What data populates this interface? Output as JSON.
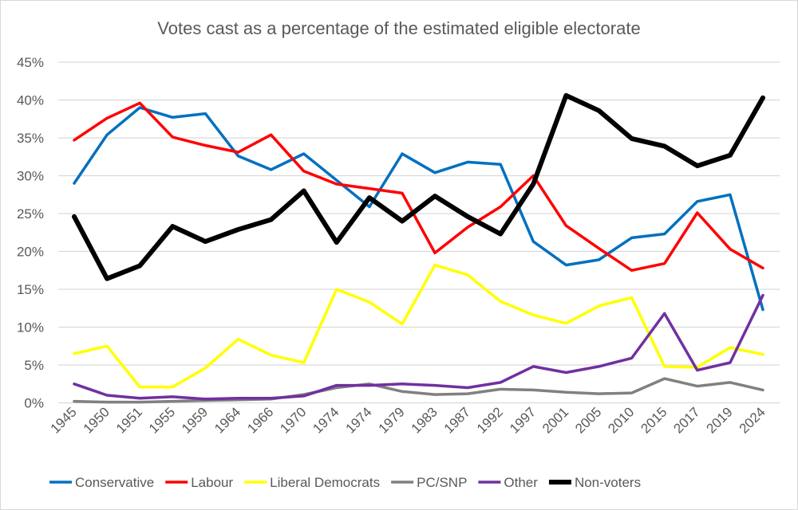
{
  "chart_data": {
    "type": "line",
    "title": "Votes cast as a percentage of the estimated eligible electorate",
    "xlabel": "",
    "ylabel": "",
    "ylim": [
      0,
      45
    ],
    "y_ticks": [
      "0%",
      "5%",
      "10%",
      "15%",
      "20%",
      "25%",
      "30%",
      "35%",
      "40%",
      "45%"
    ],
    "grid": true,
    "legend_position": "bottom",
    "categories": [
      "1945",
      "1950",
      "1951",
      "1955",
      "1959",
      "1964",
      "1966",
      "1970",
      "1974",
      "1974",
      "1979",
      "1983",
      "1987",
      "1992",
      "1997",
      "2001",
      "2005",
      "2010",
      "2015",
      "2017",
      "2019",
      "2024"
    ],
    "series": [
      {
        "name": "Conservative",
        "color": "#0070C0",
        "values": [
          29.0,
          35.4,
          39.0,
          37.7,
          38.2,
          32.6,
          30.8,
          32.9,
          29.4,
          25.9,
          32.9,
          30.4,
          31.8,
          31.5,
          21.3,
          18.2,
          18.9,
          21.8,
          22.3,
          26.6,
          27.5,
          12.3
        ]
      },
      {
        "name": "Labour",
        "color": "#FF0000",
        "values": [
          34.7,
          37.6,
          39.6,
          35.1,
          34.0,
          33.1,
          35.4,
          30.6,
          28.9,
          28.3,
          27.7,
          19.8,
          23.2,
          25.9,
          30.0,
          23.4,
          20.4,
          17.5,
          18.4,
          25.1,
          20.3,
          17.8
        ]
      },
      {
        "name": "Liberal Democrats",
        "color": "#FFFF00",
        "values": [
          6.5,
          7.5,
          2.1,
          2.1,
          4.6,
          8.4,
          6.3,
          5.3,
          15.0,
          13.3,
          10.4,
          18.2,
          16.9,
          13.4,
          11.6,
          10.5,
          12.8,
          13.9,
          4.8,
          4.7,
          7.3,
          6.4
        ]
      },
      {
        "name": "PC/SNP",
        "color": "#808080",
        "values": [
          0.2,
          0.1,
          0.1,
          0.2,
          0.3,
          0.4,
          0.5,
          1.1,
          2.0,
          2.5,
          1.5,
          1.1,
          1.2,
          1.8,
          1.7,
          1.4,
          1.2,
          1.3,
          3.2,
          2.2,
          2.7,
          1.7
        ]
      },
      {
        "name": "Other",
        "color": "#7030A0",
        "values": [
          2.5,
          1.0,
          0.6,
          0.8,
          0.5,
          0.6,
          0.6,
          0.9,
          2.3,
          2.3,
          2.5,
          2.3,
          2.0,
          2.7,
          4.8,
          4.0,
          4.8,
          5.9,
          11.8,
          4.3,
          5.3,
          14.2
        ]
      },
      {
        "name": "Non-voters",
        "color": "#000000",
        "values": [
          24.6,
          16.4,
          18.1,
          23.3,
          21.3,
          22.9,
          24.2,
          28.0,
          21.2,
          27.1,
          24.0,
          27.3,
          24.6,
          22.3,
          28.9,
          40.6,
          38.6,
          34.9,
          33.9,
          31.3,
          32.7,
          40.3
        ]
      }
    ]
  }
}
